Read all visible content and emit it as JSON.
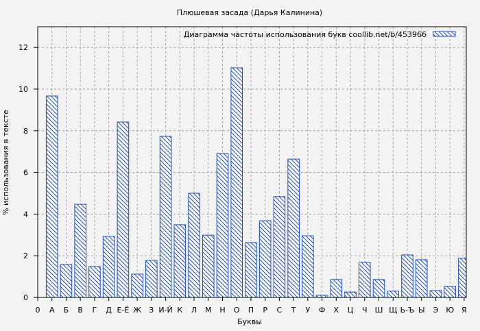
{
  "chart_data": {
    "type": "bar",
    "title": "Плюшевая засада (Дарья Калинина)",
    "xlabel": "Буквы",
    "ylabel": "% использования в тексте",
    "x_zero_label": "0",
    "categories": [
      "А",
      "Б",
      "В",
      "Г",
      "Д",
      "Е-Ё",
      "Ж",
      "З",
      "И-Й",
      "К",
      "Л",
      "М",
      "Н",
      "О",
      "П",
      "Р",
      "С",
      "Т",
      "У",
      "Ф",
      "Х",
      "Ц",
      "Ч",
      "Ш",
      "Щ",
      "Ь-Ъ",
      "Ы",
      "Э",
      "Ю",
      "Я"
    ],
    "series": [
      {
        "name": "Диаграмма частоты использования букв  coollib.net/b/453966",
        "values": [
          9.67,
          1.58,
          4.47,
          1.48,
          2.93,
          8.42,
          1.12,
          1.78,
          7.73,
          3.49,
          5.0,
          2.99,
          6.91,
          11.02,
          2.63,
          3.68,
          4.84,
          6.64,
          2.96,
          0.1,
          0.86,
          0.26,
          1.68,
          0.86,
          0.3,
          2.04,
          1.81,
          0.33,
          0.53,
          1.88
        ]
      }
    ],
    "ylim": [
      0,
      13
    ],
    "yticks": [
      0,
      2,
      4,
      6,
      8,
      10,
      12
    ],
    "grid": true,
    "legend": "top-right",
    "colors": {
      "bar": "#1f4fbf",
      "grid": "#a0a0a0",
      "background": "#f3f3f3"
    }
  }
}
